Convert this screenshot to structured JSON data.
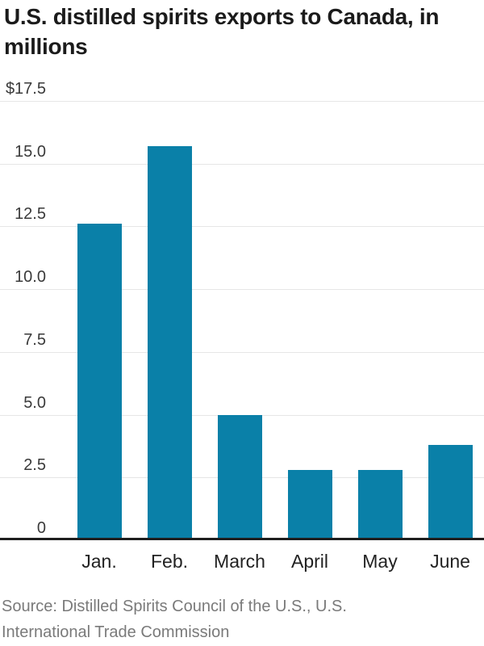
{
  "title": {
    "text": "U.S. distilled spirits exports to Canada, in millions",
    "lines": [
      "U.S. distilled spirits exports to Canada, in",
      "millions"
    ]
  },
  "source": {
    "lines": [
      "Source: Distilled Spirits Council of the U.S., U.S.",
      "International Trade Commission"
    ]
  },
  "chart_data": {
    "type": "bar",
    "title": "U.S. distilled spirits exports to Canada, in millions",
    "categories": [
      "Jan.",
      "Feb.",
      "March",
      "April",
      "May",
      "June"
    ],
    "values": [
      12.6,
      15.7,
      5.0,
      2.8,
      2.8,
      3.8
    ],
    "xlabel": "",
    "ylabel": "",
    "ylim": [
      0,
      17.5
    ],
    "y_ticks": [
      {
        "value": 17.5,
        "label": "$17.5"
      },
      {
        "value": 15.0,
        "label": "15.0"
      },
      {
        "value": 12.5,
        "label": "12.5"
      },
      {
        "value": 10.0,
        "label": "10.0"
      },
      {
        "value": 7.5,
        "label": "7.5"
      },
      {
        "value": 5.0,
        "label": "5.0"
      },
      {
        "value": 2.5,
        "label": "2.5"
      },
      {
        "value": 0,
        "label": "0"
      }
    ],
    "grid": true,
    "legend": "none",
    "bar_color": "#0a80a8",
    "gridline_color": "#e6e6e6",
    "baseline_color": "#1e1e1e",
    "tick_label_color": "#3a3a3a",
    "category_label_color": "#222222"
  }
}
